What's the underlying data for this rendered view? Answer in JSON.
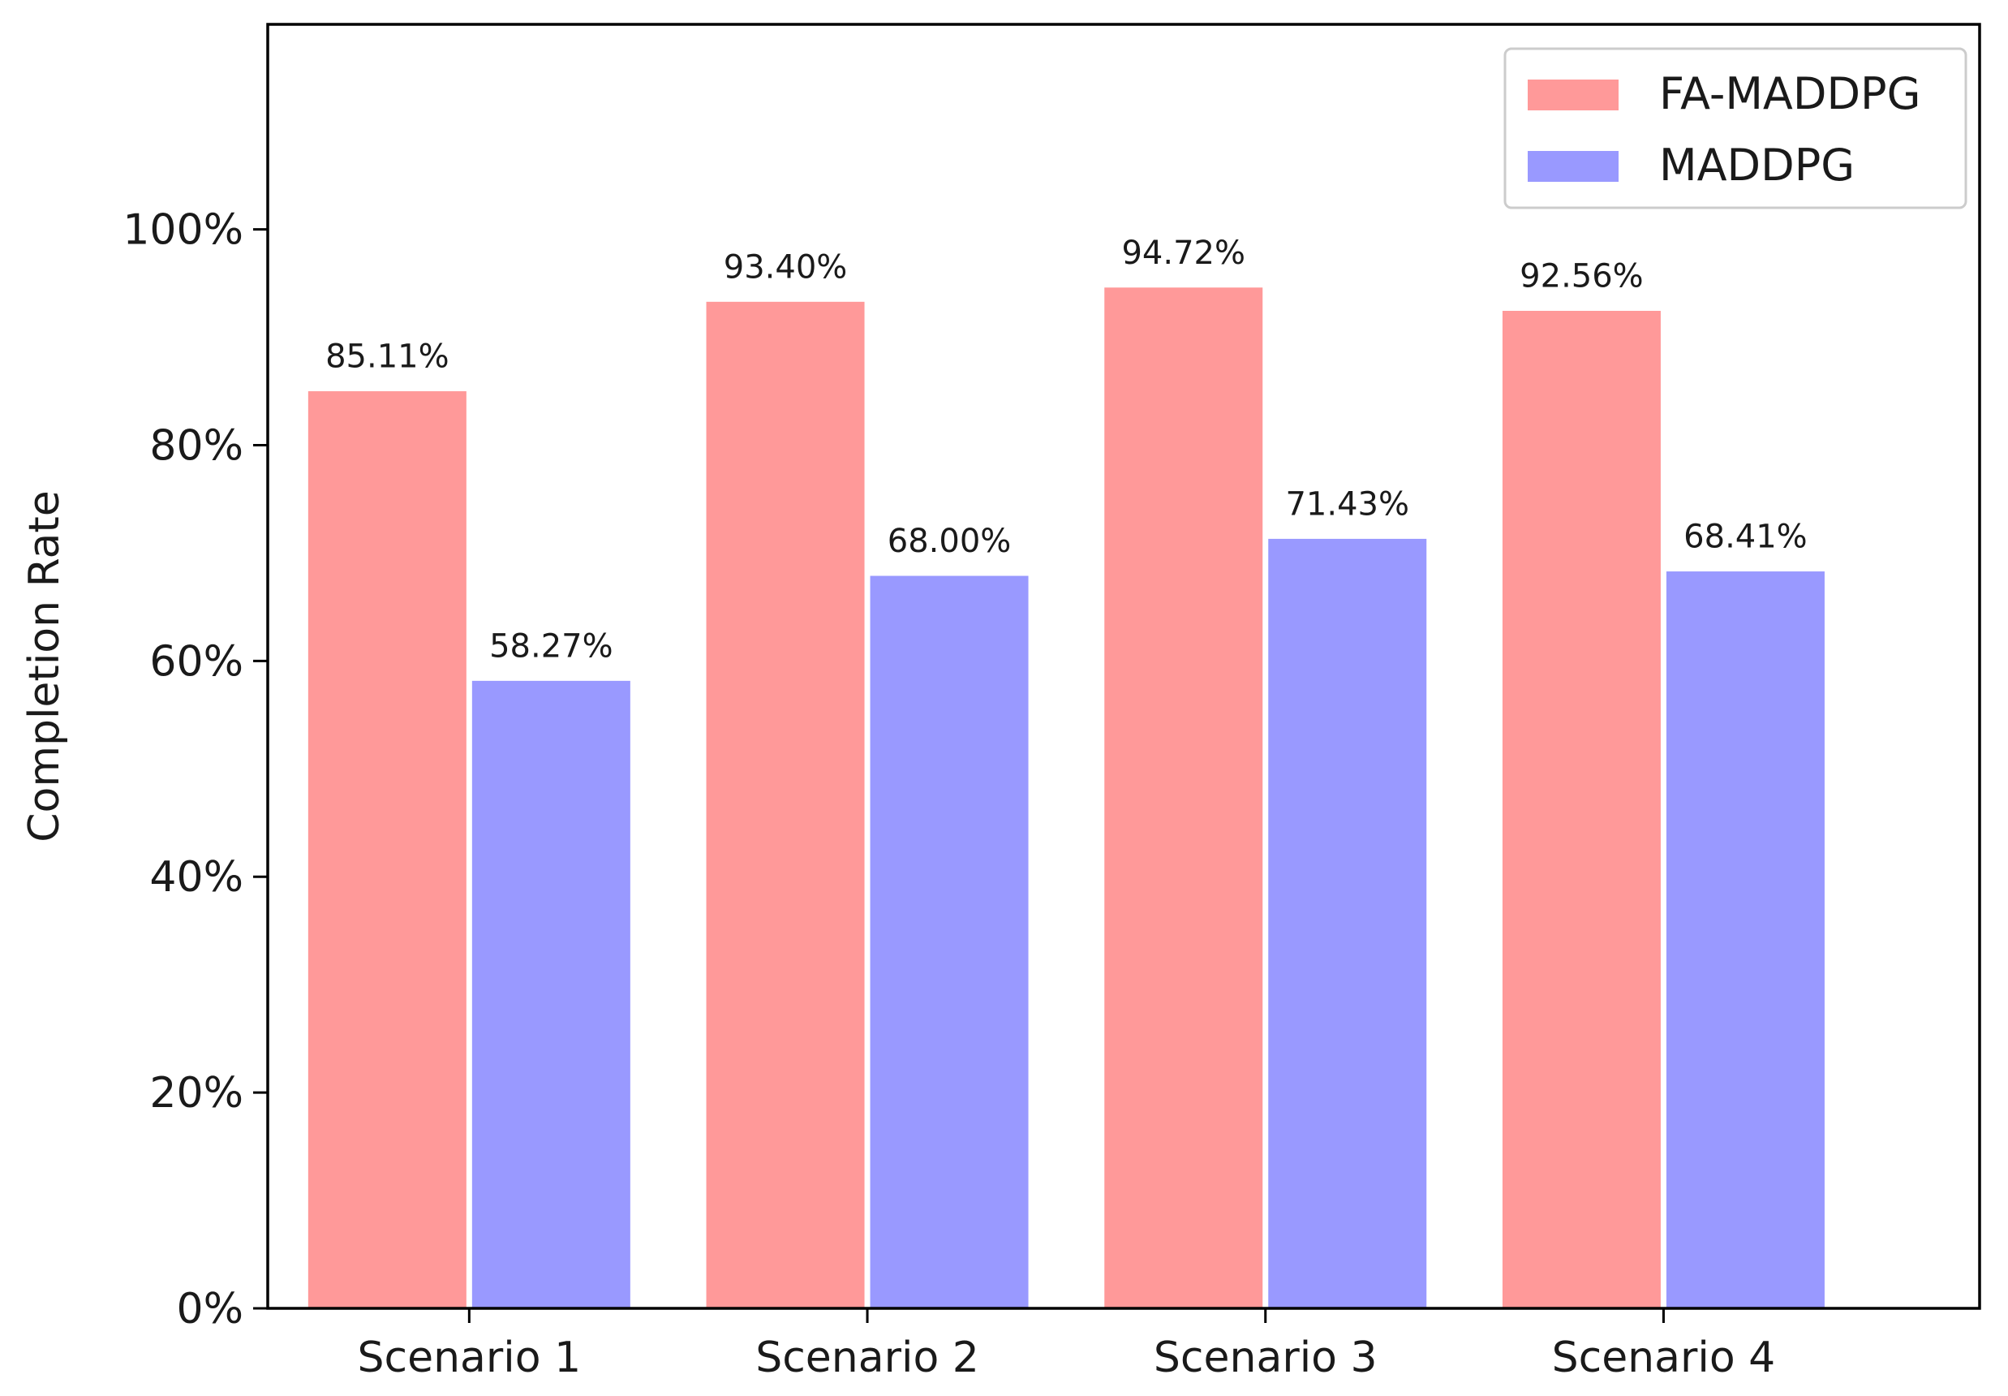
{
  "chart_data": {
    "type": "bar",
    "title": "",
    "xlabel": "",
    "ylabel": "Completion Rate",
    "categories": [
      "Scenario 1",
      "Scenario 2",
      "Scenario 3",
      "Scenario 4"
    ],
    "series": [
      {
        "name": "FA-MADDPG",
        "color": "#ff9999",
        "values": [
          85.11,
          93.4,
          94.72,
          92.56
        ],
        "labels": [
          "85.11%",
          "93.40%",
          "94.72%",
          "92.56%"
        ]
      },
      {
        "name": "MADDPG",
        "color": "#9999ff",
        "values": [
          58.27,
          68.0,
          71.43,
          68.41
        ],
        "labels": [
          "58.27%",
          "68.00%",
          "71.43%",
          "68.41%"
        ]
      }
    ],
    "ylim": [
      0,
      119
    ],
    "yticks": [
      0,
      20,
      40,
      60,
      80,
      100
    ],
    "ytick_labels": [
      "0%",
      "20%",
      "40%",
      "60%",
      "80%",
      "100%"
    ],
    "grid": false,
    "legend_position": "upper right"
  }
}
